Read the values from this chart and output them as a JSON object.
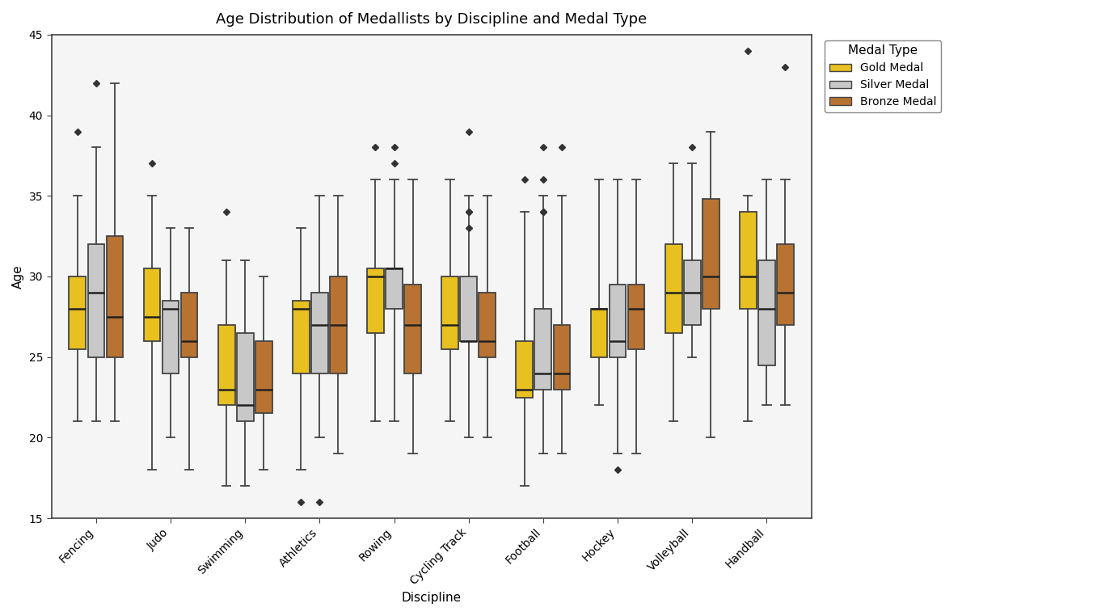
{
  "title": "Age Distribution of Medallists by Discipline and Medal Type",
  "xlabel": "Discipline",
  "ylabel": "Age",
  "ylim": [
    15,
    45
  ],
  "yticks": [
    15,
    20,
    25,
    30,
    35,
    40,
    45
  ],
  "disciplines": [
    "Fencing",
    "Judo",
    "Swimming",
    "Athletics",
    "Rowing",
    "Cycling Track",
    "Football",
    "Hockey",
    "Volleyball",
    "Handball"
  ],
  "medal_types": [
    "Gold Medal",
    "Silver Medal",
    "Bronze Medal"
  ],
  "colors": {
    "Gold Medal": "#E8C020",
    "Silver Medal": "#C8C8C8",
    "Bronze Medal": "#B87333"
  },
  "edge_color": "#444444",
  "median_color": "#222222",
  "flier_color": "#333333",
  "box_data": {
    "Fencing": {
      "Gold Medal": {
        "whislo": 21,
        "q1": 25.5,
        "med": 28,
        "q3": 30,
        "whishi": 35,
        "fliers": [
          39
        ]
      },
      "Silver Medal": {
        "whislo": 21,
        "q1": 25,
        "med": 29,
        "q3": 32,
        "whishi": 38,
        "fliers": [
          42
        ]
      },
      "Bronze Medal": {
        "whislo": 21,
        "q1": 25,
        "med": 27.5,
        "q3": 32.5,
        "whishi": 42,
        "fliers": []
      }
    },
    "Judo": {
      "Gold Medal": {
        "whislo": 18,
        "q1": 26,
        "med": 27.5,
        "q3": 30.5,
        "whishi": 35,
        "fliers": [
          37
        ]
      },
      "Silver Medal": {
        "whislo": 20,
        "q1": 24,
        "med": 28,
        "q3": 28.5,
        "whishi": 33,
        "fliers": []
      },
      "Bronze Medal": {
        "whislo": 18,
        "q1": 25,
        "med": 26,
        "q3": 29,
        "whishi": 33,
        "fliers": []
      }
    },
    "Swimming": {
      "Gold Medal": {
        "whislo": 17,
        "q1": 22,
        "med": 23,
        "q3": 27,
        "whishi": 31,
        "fliers": [
          34
        ]
      },
      "Silver Medal": {
        "whislo": 17,
        "q1": 21,
        "med": 22,
        "q3": 26.5,
        "whishi": 31,
        "fliers": []
      },
      "Bronze Medal": {
        "whislo": 18,
        "q1": 21.5,
        "med": 23,
        "q3": 26,
        "whishi": 30,
        "fliers": []
      }
    },
    "Athletics": {
      "Gold Medal": {
        "whislo": 18,
        "q1": 24,
        "med": 28,
        "q3": 28.5,
        "whishi": 33,
        "fliers": [
          16
        ]
      },
      "Silver Medal": {
        "whislo": 20,
        "q1": 24,
        "med": 27,
        "q3": 29,
        "whishi": 35,
        "fliers": [
          16
        ]
      },
      "Bronze Medal": {
        "whislo": 19,
        "q1": 24,
        "med": 27,
        "q3": 30,
        "whishi": 35,
        "fliers": []
      }
    },
    "Rowing": {
      "Gold Medal": {
        "whislo": 21,
        "q1": 26.5,
        "med": 30,
        "q3": 30.5,
        "whishi": 36,
        "fliers": [
          38
        ]
      },
      "Silver Medal": {
        "whislo": 21,
        "q1": 28,
        "med": 30.5,
        "q3": 30.5,
        "whishi": 36,
        "fliers": [
          38,
          37
        ]
      },
      "Bronze Medal": {
        "whislo": 19,
        "q1": 24,
        "med": 27,
        "q3": 29.5,
        "whishi": 36,
        "fliers": []
      }
    },
    "Cycling Track": {
      "Gold Medal": {
        "whislo": 21,
        "q1": 25.5,
        "med": 27,
        "q3": 30,
        "whishi": 36,
        "fliers": []
      },
      "Silver Medal": {
        "whislo": 20,
        "q1": 26,
        "med": 26,
        "q3": 30,
        "whishi": 35,
        "fliers": [
          34,
          34,
          33,
          39
        ]
      },
      "Bronze Medal": {
        "whislo": 20,
        "q1": 25,
        "med": 26,
        "q3": 29,
        "whishi": 35,
        "fliers": []
      }
    },
    "Football": {
      "Gold Medal": {
        "whislo": 17,
        "q1": 22.5,
        "med": 23,
        "q3": 26,
        "whishi": 34,
        "fliers": [
          36
        ]
      },
      "Silver Medal": {
        "whislo": 19,
        "q1": 23,
        "med": 24,
        "q3": 28,
        "whishi": 35,
        "fliers": [
          36,
          34,
          34,
          38
        ]
      },
      "Bronze Medal": {
        "whislo": 19,
        "q1": 23,
        "med": 24,
        "q3": 27,
        "whishi": 35,
        "fliers": [
          38
        ]
      }
    },
    "Hockey": {
      "Gold Medal": {
        "whislo": 22,
        "q1": 25,
        "med": 28,
        "q3": 28,
        "whishi": 36,
        "fliers": []
      },
      "Silver Medal": {
        "whislo": 19,
        "q1": 25,
        "med": 26,
        "q3": 29.5,
        "whishi": 36,
        "fliers": [
          18
        ]
      },
      "Bronze Medal": {
        "whislo": 19,
        "q1": 25.5,
        "med": 28,
        "q3": 29.5,
        "whishi": 36,
        "fliers": []
      }
    },
    "Volleyball": {
      "Gold Medal": {
        "whislo": 21,
        "q1": 26.5,
        "med": 29,
        "q3": 32,
        "whishi": 37,
        "fliers": []
      },
      "Silver Medal": {
        "whislo": 25,
        "q1": 27,
        "med": 29,
        "q3": 31,
        "whishi": 37,
        "fliers": [
          38
        ]
      },
      "Bronze Medal": {
        "whislo": 20,
        "q1": 28,
        "med": 30,
        "q3": 34.8,
        "whishi": 39,
        "fliers": []
      }
    },
    "Handball": {
      "Gold Medal": {
        "whislo": 21,
        "q1": 28,
        "med": 30,
        "q3": 34,
        "whishi": 35,
        "fliers": [
          44
        ]
      },
      "Silver Medal": {
        "whislo": 22,
        "q1": 24.5,
        "med": 28,
        "q3": 31,
        "whishi": 36,
        "fliers": []
      },
      "Bronze Medal": {
        "whislo": 22,
        "q1": 27,
        "med": 29,
        "q3": 32,
        "whishi": 36,
        "fliers": [
          43
        ]
      }
    }
  }
}
